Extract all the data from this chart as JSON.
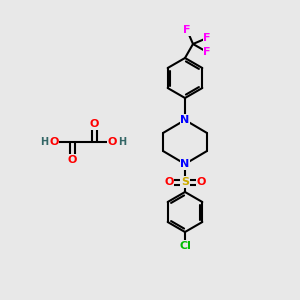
{
  "background_color": "#e8e8e8",
  "atom_colors": {
    "N": "#0000ff",
    "O": "#ff0000",
    "S": "#ccaa00",
    "Cl": "#00bb00",
    "F": "#ff00ff",
    "C": "#000000",
    "H": "#336666"
  },
  "bond_color": "#000000",
  "bond_width": 1.5,
  "font_size_atoms": 8,
  "font_size_small": 7
}
